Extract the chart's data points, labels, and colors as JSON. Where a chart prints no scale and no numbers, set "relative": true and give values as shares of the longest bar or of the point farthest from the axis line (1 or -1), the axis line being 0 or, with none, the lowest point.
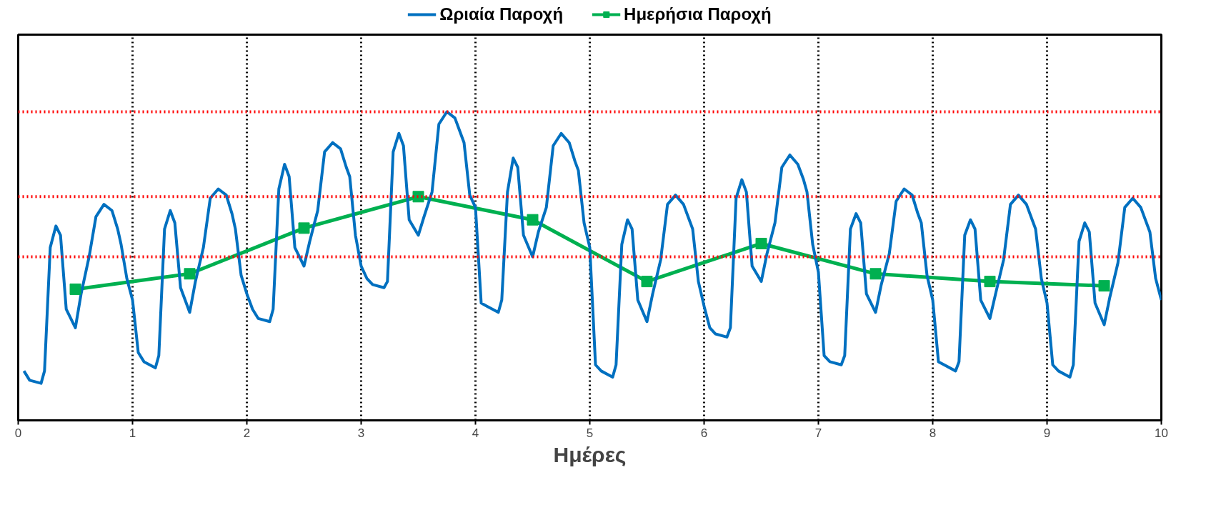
{
  "chart_data": {
    "type": "line",
    "xlabel": "Ημέρες",
    "relative": true,
    "xlim": [
      0,
      10
    ],
    "xticks": [
      0,
      1,
      2,
      3,
      4,
      5,
      6,
      7,
      8,
      9,
      10
    ],
    "grid": "x",
    "legend": "top",
    "line_style": "solid",
    "ref_lines": [
      {
        "axis": "y",
        "value": 1.0,
        "color": "#ff0000",
        "line_style": "dotted"
      },
      {
        "axis": "y",
        "value": 0.725,
        "color": "#ff0000",
        "line_style": "dotted"
      },
      {
        "axis": "y",
        "value": 0.53,
        "color": "#ff0000",
        "line_style": "dotted"
      }
    ],
    "series": [
      {
        "name": "Ωριαία Παροχή",
        "color": "#0070c0",
        "marker": "none",
        "x": [
          0.05,
          0.1,
          0.2,
          0.23,
          0.28,
          0.33,
          0.37,
          0.42,
          0.5,
          0.55,
          0.62,
          0.68,
          0.75,
          0.82,
          0.87,
          0.9,
          0.95,
          1.0,
          1.05,
          1.1,
          1.2,
          1.23,
          1.28,
          1.33,
          1.37,
          1.42,
          1.5,
          1.55,
          1.62,
          1.68,
          1.75,
          1.82,
          1.87,
          1.9,
          1.95,
          2.0,
          2.05,
          2.1,
          2.2,
          2.23,
          2.28,
          2.33,
          2.37,
          2.42,
          2.5,
          2.55,
          2.62,
          2.68,
          2.75,
          2.82,
          2.87,
          2.9,
          2.95,
          3.0,
          3.05,
          3.1,
          3.2,
          3.23,
          3.28,
          3.33,
          3.37,
          3.42,
          3.5,
          3.55,
          3.62,
          3.68,
          3.75,
          3.82,
          3.87,
          3.9,
          3.95,
          4.0,
          4.05,
          4.1,
          4.2,
          4.23,
          4.28,
          4.33,
          4.37,
          4.42,
          4.5,
          4.55,
          4.62,
          4.68,
          4.75,
          4.82,
          4.87,
          4.9,
          4.95,
          5.0,
          5.05,
          5.1,
          5.2,
          5.23,
          5.28,
          5.33,
          5.37,
          5.42,
          5.5,
          5.55,
          5.62,
          5.68,
          5.75,
          5.82,
          5.87,
          5.9,
          5.95,
          6.0,
          6.05,
          6.1,
          6.2,
          6.23,
          6.28,
          6.33,
          6.37,
          6.42,
          6.5,
          6.55,
          6.62,
          6.68,
          6.75,
          6.82,
          6.87,
          6.9,
          6.95,
          7.0,
          7.05,
          7.1,
          7.2,
          7.23,
          7.28,
          7.33,
          7.37,
          7.42,
          7.5,
          7.55,
          7.62,
          7.68,
          7.75,
          7.82,
          7.87,
          7.9,
          7.95,
          8.0,
          8.05,
          8.1,
          8.2,
          8.23,
          8.28,
          8.33,
          8.37,
          8.42,
          8.5,
          8.55,
          8.62,
          8.68,
          8.75,
          8.82,
          8.87,
          8.9,
          8.95,
          9.0,
          9.05,
          9.1,
          9.2,
          9.23,
          9.28,
          9.33,
          9.37,
          9.42,
          9.5,
          9.55,
          9.62,
          9.68,
          9.75,
          9.82,
          9.87,
          9.9,
          9.95,
          10.0
        ],
        "values": [
          0.16,
          0.13,
          0.12,
          0.16,
          0.56,
          0.63,
          0.6,
          0.36,
          0.3,
          0.41,
          0.53,
          0.66,
          0.7,
          0.68,
          0.62,
          0.57,
          0.46,
          0.39,
          0.22,
          0.19,
          0.17,
          0.21,
          0.62,
          0.68,
          0.64,
          0.43,
          0.35,
          0.45,
          0.56,
          0.72,
          0.75,
          0.73,
          0.67,
          0.62,
          0.47,
          0.41,
          0.36,
          0.33,
          0.32,
          0.36,
          0.75,
          0.83,
          0.79,
          0.56,
          0.5,
          0.58,
          0.68,
          0.87,
          0.9,
          0.88,
          0.82,
          0.79,
          0.6,
          0.5,
          0.46,
          0.44,
          0.43,
          0.45,
          0.87,
          0.93,
          0.89,
          0.65,
          0.6,
          0.66,
          0.74,
          0.96,
          1.0,
          0.98,
          0.93,
          0.9,
          0.73,
          0.69,
          0.38,
          0.37,
          0.35,
          0.39,
          0.74,
          0.85,
          0.82,
          0.6,
          0.53,
          0.61,
          0.69,
          0.89,
          0.93,
          0.9,
          0.84,
          0.81,
          0.64,
          0.56,
          0.18,
          0.16,
          0.14,
          0.18,
          0.57,
          0.65,
          0.62,
          0.39,
          0.32,
          0.41,
          0.52,
          0.7,
          0.73,
          0.7,
          0.65,
          0.62,
          0.45,
          0.37,
          0.3,
          0.28,
          0.27,
          0.3,
          0.72,
          0.78,
          0.74,
          0.5,
          0.45,
          0.54,
          0.64,
          0.82,
          0.86,
          0.83,
          0.78,
          0.74,
          0.57,
          0.48,
          0.21,
          0.19,
          0.18,
          0.21,
          0.62,
          0.67,
          0.64,
          0.41,
          0.35,
          0.44,
          0.54,
          0.71,
          0.75,
          0.73,
          0.67,
          0.64,
          0.47,
          0.39,
          0.19,
          0.18,
          0.16,
          0.19,
          0.6,
          0.65,
          0.62,
          0.39,
          0.33,
          0.41,
          0.52,
          0.7,
          0.73,
          0.7,
          0.65,
          0.62,
          0.46,
          0.38,
          0.18,
          0.16,
          0.14,
          0.18,
          0.58,
          0.64,
          0.61,
          0.38,
          0.31,
          0.4,
          0.51,
          0.69,
          0.72,
          0.69,
          0.64,
          0.61,
          0.46,
          0.39
        ]
      },
      {
        "name": "Ημερήσια Παροχή",
        "color": "#00b050",
        "marker": "square",
        "x": [
          0.5,
          1.5,
          2.5,
          3.5,
          4.5,
          5.5,
          6.5,
          7.5,
          8.5,
          9.5
        ],
        "values": [
          0.425,
          0.475,
          0.623,
          0.725,
          0.65,
          0.45,
          0.573,
          0.475,
          0.45,
          0.436
        ]
      }
    ]
  }
}
